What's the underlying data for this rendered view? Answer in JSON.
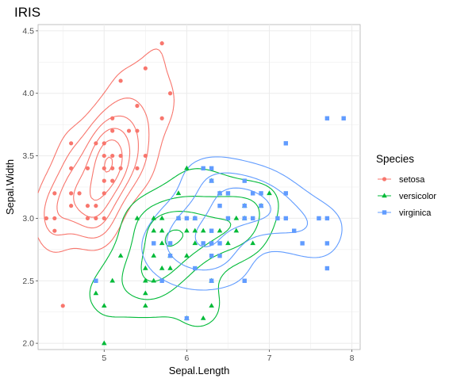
{
  "chart_data": {
    "type": "scatter",
    "title": "IRIS",
    "xlabel": "Sepal.Length",
    "ylabel": "Sepal.Width",
    "xlim": [
      4.2,
      8.1
    ],
    "ylim": [
      1.95,
      4.55
    ],
    "x_ticks": [
      5,
      6,
      7,
      8
    ],
    "y_ticks": [
      2.0,
      2.5,
      3.0,
      3.5,
      4.0,
      4.5
    ],
    "x_tick_labels": [
      "5",
      "6",
      "7",
      "8"
    ],
    "y_tick_labels": [
      "2.0",
      "2.5",
      "3.0",
      "3.5",
      "4.0",
      "4.5"
    ],
    "grid": true,
    "legend": {
      "title": "Species",
      "placement": "right",
      "entries": [
        "setosa",
        "versicolor",
        "virginica"
      ]
    },
    "overlay": "2d density contours per species",
    "series": [
      {
        "name": "setosa",
        "color": "#F8766D",
        "marker": "circle",
        "points": [
          [
            4.3,
            3.0
          ],
          [
            4.4,
            2.9
          ],
          [
            4.4,
            3.0
          ],
          [
            4.4,
            3.2
          ],
          [
            4.5,
            2.3
          ],
          [
            4.6,
            3.1
          ],
          [
            4.6,
            3.2
          ],
          [
            4.6,
            3.4
          ],
          [
            4.6,
            3.6
          ],
          [
            4.7,
            3.2
          ],
          [
            4.8,
            3.0
          ],
          [
            4.8,
            3.1
          ],
          [
            4.8,
            3.4
          ],
          [
            4.9,
            3.0
          ],
          [
            4.9,
            3.1
          ],
          [
            4.9,
            3.6
          ],
          [
            5.0,
            3.0
          ],
          [
            5.0,
            3.2
          ],
          [
            5.0,
            3.3
          ],
          [
            5.0,
            3.4
          ],
          [
            5.0,
            3.5
          ],
          [
            5.0,
            3.6
          ],
          [
            5.1,
            3.3
          ],
          [
            5.1,
            3.4
          ],
          [
            5.1,
            3.5
          ],
          [
            5.1,
            3.7
          ],
          [
            5.1,
            3.8
          ],
          [
            5.2,
            3.4
          ],
          [
            5.2,
            3.5
          ],
          [
            5.2,
            4.1
          ],
          [
            5.3,
            3.7
          ],
          [
            5.4,
            3.4
          ],
          [
            5.4,
            3.7
          ],
          [
            5.4,
            3.9
          ],
          [
            5.5,
            3.5
          ],
          [
            5.5,
            4.2
          ],
          [
            5.7,
            3.8
          ],
          [
            5.7,
            4.4
          ],
          [
            5.8,
            4.0
          ]
        ]
      },
      {
        "name": "versicolor",
        "color": "#00BA38",
        "marker": "triangle",
        "points": [
          [
            4.9,
            2.4
          ],
          [
            5.0,
            2.0
          ],
          [
            5.0,
            2.3
          ],
          [
            5.1,
            2.5
          ],
          [
            5.2,
            2.7
          ],
          [
            5.4,
            3.0
          ],
          [
            5.5,
            2.3
          ],
          [
            5.5,
            2.4
          ],
          [
            5.5,
            2.5
          ],
          [
            5.5,
            2.6
          ],
          [
            5.6,
            2.5
          ],
          [
            5.6,
            2.7
          ],
          [
            5.6,
            2.9
          ],
          [
            5.6,
            3.0
          ],
          [
            5.7,
            2.6
          ],
          [
            5.7,
            2.8
          ],
          [
            5.7,
            2.9
          ],
          [
            5.7,
            3.0
          ],
          [
            5.8,
            2.6
          ],
          [
            5.8,
            2.7
          ],
          [
            5.9,
            3.0
          ],
          [
            5.9,
            3.2
          ],
          [
            6.0,
            2.2
          ],
          [
            6.0,
            2.7
          ],
          [
            6.0,
            2.9
          ],
          [
            6.0,
            3.4
          ],
          [
            6.1,
            2.8
          ],
          [
            6.1,
            2.9
          ],
          [
            6.1,
            3.0
          ],
          [
            6.2,
            2.2
          ],
          [
            6.2,
            2.9
          ],
          [
            6.3,
            2.3
          ],
          [
            6.3,
            2.5
          ],
          [
            6.3,
            3.3
          ],
          [
            6.4,
            2.9
          ],
          [
            6.4,
            3.2
          ],
          [
            6.5,
            2.8
          ],
          [
            6.6,
            2.9
          ],
          [
            6.6,
            3.0
          ],
          [
            6.7,
            3.0
          ],
          [
            6.7,
            3.1
          ],
          [
            6.8,
            2.8
          ],
          [
            6.9,
            3.1
          ],
          [
            7.0,
            3.2
          ]
        ]
      },
      {
        "name": "virginica",
        "color": "#619CFF",
        "marker": "square",
        "points": [
          [
            4.9,
            2.5
          ],
          [
            5.6,
            2.8
          ],
          [
            5.7,
            2.5
          ],
          [
            5.8,
            2.7
          ],
          [
            5.8,
            2.8
          ],
          [
            5.9,
            3.0
          ],
          [
            6.0,
            2.2
          ],
          [
            6.0,
            3.0
          ],
          [
            6.1,
            2.6
          ],
          [
            6.1,
            3.0
          ],
          [
            6.2,
            2.8
          ],
          [
            6.2,
            3.4
          ],
          [
            6.3,
            2.5
          ],
          [
            6.3,
            2.7
          ],
          [
            6.3,
            2.8
          ],
          [
            6.3,
            2.9
          ],
          [
            6.3,
            3.3
          ],
          [
            6.3,
            3.4
          ],
          [
            6.4,
            2.7
          ],
          [
            6.4,
            2.8
          ],
          [
            6.4,
            3.1
          ],
          [
            6.4,
            3.2
          ],
          [
            6.5,
            3.0
          ],
          [
            6.5,
            3.2
          ],
          [
            6.7,
            2.5
          ],
          [
            6.7,
            3.0
          ],
          [
            6.7,
            3.1
          ],
          [
            6.7,
            3.3
          ],
          [
            6.8,
            3.0
          ],
          [
            6.8,
            3.2
          ],
          [
            6.9,
            3.1
          ],
          [
            6.9,
            3.2
          ],
          [
            7.1,
            3.0
          ],
          [
            7.2,
            3.0
          ],
          [
            7.2,
            3.2
          ],
          [
            7.2,
            3.6
          ],
          [
            7.3,
            2.9
          ],
          [
            7.4,
            2.8
          ],
          [
            7.6,
            3.0
          ],
          [
            7.7,
            2.6
          ],
          [
            7.7,
            2.8
          ],
          [
            7.7,
            3.0
          ],
          [
            7.7,
            3.8
          ],
          [
            7.9,
            3.8
          ]
        ]
      }
    ]
  }
}
